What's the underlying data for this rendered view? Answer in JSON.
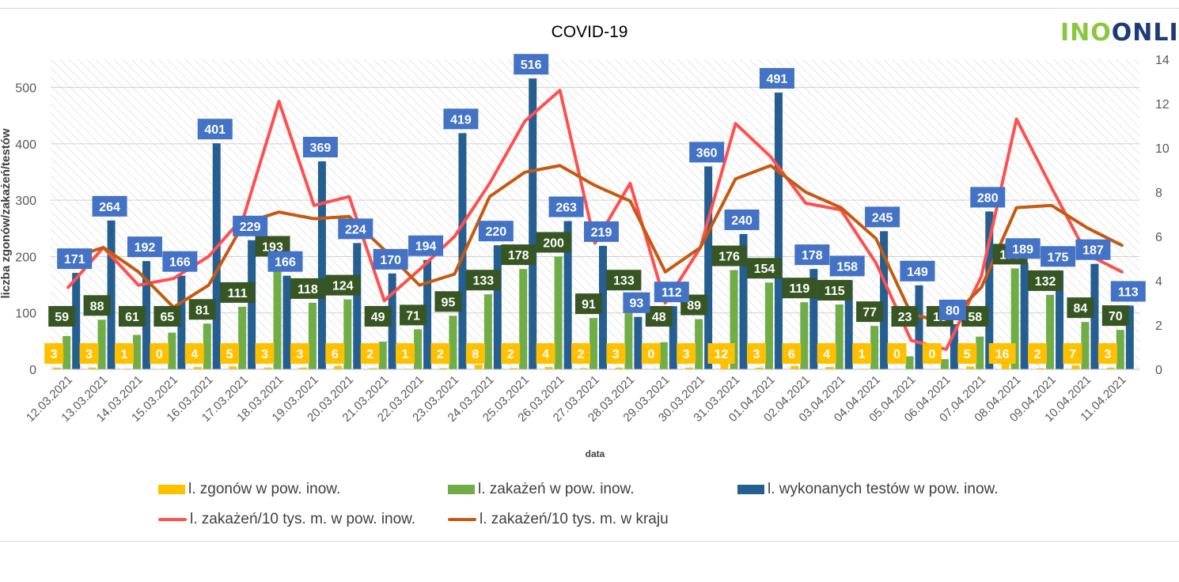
{
  "logo": {
    "part1": "INO",
    "part2": "ONLIN"
  },
  "chart_data": {
    "type": "bar",
    "title": "COVID-19",
    "xlabel": "data",
    "ylabel": "liczba zgonów/zakażeń/testów",
    "ylim": [
      0,
      550
    ],
    "y_ticks": [
      0,
      100,
      200,
      300,
      400,
      500
    ],
    "y2lim": [
      0,
      14
    ],
    "y2_ticks": [
      0,
      2,
      4,
      6,
      8,
      10,
      12,
      14
    ],
    "categories": [
      "12.03.2021",
      "13.03.2021",
      "14.03.2021",
      "15.03.2021",
      "16.03.2021",
      "17.03.2021",
      "18.03.2021",
      "19.03.2021",
      "20.03.2021",
      "21.03.2021",
      "22.03.2021",
      "23.03.2021",
      "24.03.2021",
      "25.03.2021",
      "26.03.2021",
      "27.03.2021",
      "28.03.2021",
      "29.03.2021",
      "30.03.2021",
      "31.03.2021",
      "01.04.2021",
      "02.04.2021",
      "03.04.2021",
      "04.04.2021",
      "05.04.2021",
      "06.04.2021",
      "07.04.2021",
      "08.04.2021",
      "09.04.2021",
      "10.04.2021",
      "11.04.2021"
    ],
    "series": [
      {
        "name": "l. zgonów w pow. inow.",
        "kind": "bar",
        "axis": "left",
        "color": "#ffc000",
        "label_color": "#ffc000",
        "values": [
          3,
          3,
          1,
          0,
          4,
          5,
          3,
          3,
          6,
          2,
          1,
          2,
          8,
          2,
          4,
          2,
          3,
          0,
          3,
          12,
          3,
          6,
          4,
          1,
          0,
          0,
          5,
          16,
          2,
          7,
          3
        ]
      },
      {
        "name": "l. zakażeń w pow. inow.",
        "kind": "bar",
        "axis": "left",
        "color": "#70ad47",
        "label_color": "#375623",
        "values": [
          59,
          88,
          61,
          65,
          81,
          111,
          193,
          118,
          124,
          49,
          71,
          95,
          133,
          178,
          200,
          91,
          133,
          48,
          89,
          176,
          154,
          119,
          115,
          77,
          23,
          18,
          58,
          179,
          132,
          84,
          70
        ]
      },
      {
        "name": "l. wykonanych testów w pow. inow.",
        "kind": "bar",
        "axis": "left",
        "color": "#255e91",
        "label_color": "#4472c4",
        "values": [
          171,
          264,
          192,
          166,
          401,
          229,
          166,
          369,
          224,
          170,
          194,
          419,
          220,
          516,
          263,
          219,
          93,
          112,
          360,
          240,
          491,
          178,
          158,
          245,
          149,
          80,
          280,
          189,
          175,
          187,
          113
        ]
      },
      {
        "name": "l. zakażeń/10 tys. m. w pow. inow.",
        "kind": "line",
        "axis": "right",
        "color": "#ff5050",
        "values": [
          3.7,
          5.5,
          3.8,
          4.1,
          5.1,
          6.9,
          12.1,
          7.4,
          7.8,
          3.1,
          4.5,
          6.0,
          8.4,
          11.2,
          12.6,
          5.7,
          8.4,
          3.0,
          5.5,
          11.1,
          9.6,
          7.5,
          7.2,
          4.8,
          1.3,
          0.9,
          4.2,
          11.3,
          8.2,
          5.2,
          4.4
        ]
      },
      {
        "name": "l. zakażeń/10 tys. m. w kraju",
        "kind": "line",
        "axis": "right",
        "color": "#c55a11",
        "values": [
          5.0,
          5.5,
          4.4,
          2.8,
          3.8,
          6.6,
          7.1,
          6.8,
          6.9,
          5.4,
          3.8,
          4.3,
          7.8,
          8.9,
          9.2,
          8.3,
          7.6,
          4.4,
          5.5,
          8.6,
          9.2,
          8.0,
          7.3,
          5.9,
          2.5,
          2.1,
          3.7,
          7.3,
          7.4,
          6.4,
          5.6
        ]
      }
    ],
    "grid": true,
    "legend": "bottom"
  }
}
